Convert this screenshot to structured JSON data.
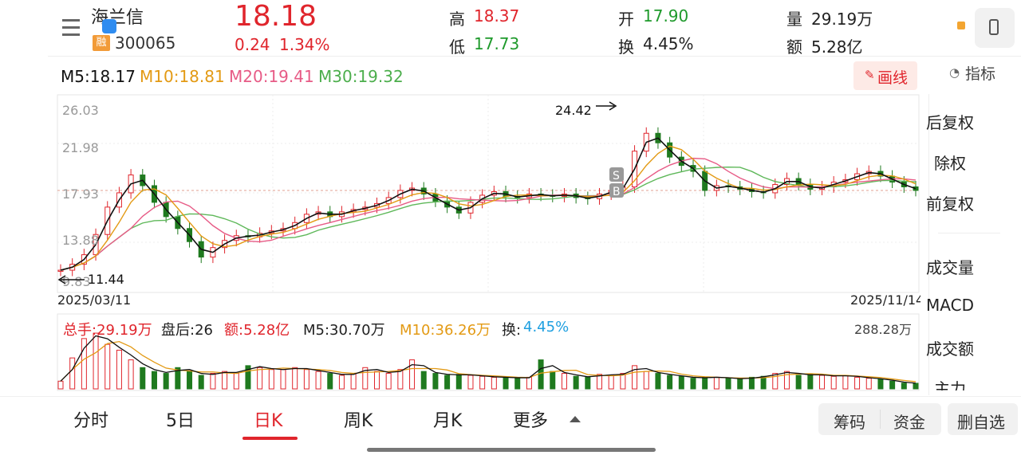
{
  "stock": {
    "name": "海兰信",
    "code": "300065",
    "margin_badge": "融",
    "price": "18.18",
    "change": "0.24",
    "change_pct": "1.34%"
  },
  "quote": {
    "high_label": "高",
    "high": "18.37",
    "low_label": "低",
    "low": "17.73",
    "open_label": "开",
    "open": "17.90",
    "turnover_label": "换",
    "turnover": "4.45%",
    "volume_label": "量",
    "volume": "29.19万",
    "amount_label": "额",
    "amount": "5.28亿"
  },
  "ma": {
    "m5": "M5:18.17",
    "m10": "M10:18.81",
    "m20": "M20:19.41",
    "m30": "M30:19.32"
  },
  "draw_button": "画线",
  "indicator_label": "指标",
  "side_menu": [
    "后复权",
    "除权",
    "前复权",
    "成交量",
    "MACD",
    "成交额",
    "主力"
  ],
  "chart_labels": {
    "y_ticks": [
      "26.03",
      "21.98",
      "17.93",
      "13.88",
      "9.83"
    ],
    "max_label": "24.42",
    "min_label": "11.44",
    "start_date": "2025/03/11",
    "end_date": "2025/11/14",
    "s_marker": "S",
    "b_marker": "B"
  },
  "volume_bar": {
    "total": "总手:29.19万",
    "after": "盘后:26",
    "amount": "额:5.28亿",
    "m5": "M5:30.70万",
    "m10": "M10:36.26万",
    "turn_label": "换:",
    "turn_value": "4.45%",
    "max_vol": "288.28万"
  },
  "tabs": [
    "分时",
    "5日",
    "日K",
    "周K",
    "月K",
    "更多"
  ],
  "active_tab": "日K",
  "bottom_buttons": [
    "筹码",
    "资金",
    "删自选"
  ],
  "colors": {
    "up": "#e0252c",
    "down": "#1f7a1f",
    "ma5": "#111111",
    "ma10": "#e39a14",
    "ma20": "#e75b86",
    "ma30": "#5fb85a"
  },
  "chart_data": {
    "type": "candlestick",
    "title": "",
    "ylim": [
      9.83,
      26.03
    ],
    "x_range": [
      "2025/03/11",
      "2025/11/14"
    ],
    "close_trend": [
      11.5,
      12.0,
      12.8,
      14.5,
      16.8,
      18.0,
      19.5,
      18.6,
      17.2,
      16.0,
      15.0,
      13.9,
      12.6,
      13.4,
      14.0,
      14.4,
      14.3,
      14.6,
      14.8,
      15.0,
      15.5,
      16.2,
      16.4,
      16.0,
      16.4,
      16.6,
      16.8,
      17.1,
      17.6,
      18.2,
      18.4,
      17.9,
      17.3,
      16.8,
      16.3,
      17.2,
      17.8,
      18.1,
      17.7,
      17.6,
      17.9,
      17.8,
      17.7,
      17.9,
      17.6,
      17.5,
      17.9,
      18.2,
      18.5,
      21.5,
      23.0,
      22.2,
      21.0,
      20.3,
      19.8,
      18.2,
      18.6,
      18.5,
      18.3,
      18.1,
      18.0,
      18.7,
      19.2,
      18.7,
      18.3,
      18.5,
      18.9,
      19.1,
      19.6,
      19.8,
      19.4,
      18.9,
      18.5,
      18.2
    ],
    "volume_wan": [
      40,
      160,
      260,
      288,
      230,
      200,
      150,
      110,
      90,
      80,
      110,
      90,
      70,
      80,
      90,
      80,
      120,
      110,
      100,
      100,
      110,
      100,
      90,
      80,
      70,
      80,
      110,
      90,
      80,
      100,
      150,
      90,
      80,
      70,
      75,
      70,
      65,
      60,
      60,
      55,
      60,
      150,
      90,
      80,
      65,
      60,
      75,
      70,
      80,
      120,
      90,
      80,
      70,
      65,
      55,
      60,
      60,
      55,
      50,
      60,
      65,
      80,
      90,
      70,
      75,
      70,
      65,
      70,
      60,
      55,
      50,
      40,
      30,
      29
    ]
  }
}
